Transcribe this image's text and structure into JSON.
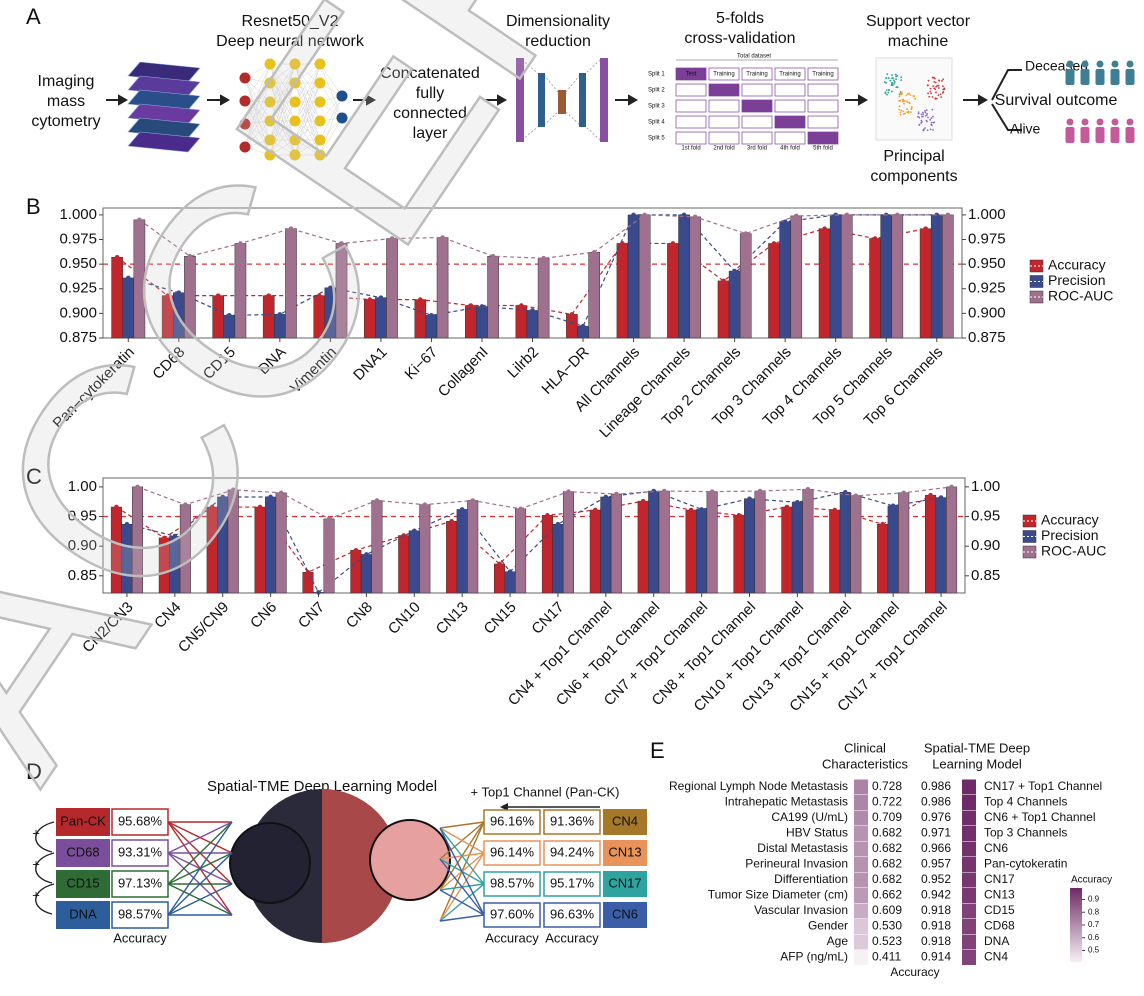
{
  "panel_a": {
    "label": "A",
    "imc": [
      "Imaging",
      "mass",
      "cytometry"
    ],
    "resnet": [
      "Resnet50_V2",
      "Deep neural network"
    ],
    "concat": [
      "Concatenated",
      "fully",
      "connected",
      "layer"
    ],
    "dimred": [
      "Dimensionality",
      "reduction"
    ],
    "cv": [
      "5-folds",
      "cross-validation"
    ],
    "cv_table": {
      "title": "Total dataset",
      "splits": [
        "Split 1",
        "Split 2",
        "Split 3",
        "Split 4",
        "Split 5"
      ],
      "test": "Test",
      "training": "Training",
      "folds": [
        "1st fold",
        "2nd fold",
        "3rd fold",
        "4th fold",
        "5th fold"
      ]
    },
    "svm": [
      "Support vector",
      "machine"
    ],
    "pc": [
      "Principal",
      "components"
    ],
    "deceased": "Deceased",
    "alive": "Alive",
    "outcome": "Survival outcome"
  },
  "chart_data": [
    {
      "type": "bar",
      "panel": "B",
      "categories": [
        "Pan−cytokeratin",
        "CD68",
        "CD15",
        "DNA",
        "Vimentin",
        "DNA1",
        "Ki−67",
        "CollagenI",
        "Lilrb2",
        "HLA−DR",
        "All Channels",
        "Lineage Channels",
        "Top 2 Channels",
        "Top 3 Channels",
        "Top 4 Channels",
        "Top 5 Channels",
        "Top 6 Channels"
      ],
      "series": [
        {
          "name": "Accuracy",
          "color": "#c0262c",
          "values": [
            0.957,
            0.918,
            0.918,
            0.918,
            0.918,
            0.914,
            0.914,
            0.908,
            0.908,
            0.899,
            0.971,
            0.971,
            0.933,
            0.971,
            0.986,
            0.976,
            0.986
          ]
        },
        {
          "name": "Precision",
          "color": "#3b4a8c",
          "values": [
            0.936,
            0.921,
            0.898,
            0.899,
            0.926,
            0.916,
            0.898,
            0.907,
            0.903,
            0.887,
            1,
            1,
            0.943,
            0.993,
            1,
            1,
            1
          ]
        },
        {
          "name": "ROC-AUC",
          "color": "#a0708f",
          "values": [
            0.995,
            0.958,
            0.971,
            0.986,
            0.971,
            0.976,
            0.977,
            0.958,
            0.956,
            0.962,
            1,
            0.998,
            0.981,
            0.999,
            1,
            1,
            1
          ]
        }
      ],
      "ylim": [
        0.875,
        1.007
      ],
      "yticks": [
        0.875,
        {
          "value": 0.9,
          "label": "0.900"
        },
        0.925,
        {
          "value": 0.95,
          "label": "0.950"
        },
        0.975,
        {
          "value": 1,
          "label": "1.000"
        }
      ],
      "reference_line": 0.95,
      "reference_color": "#e03030",
      "legend": "right"
    },
    {
      "type": "bar",
      "panel": "C",
      "categories": [
        "CN2/CN3",
        "CN4",
        "CN5/CN9",
        "CN6",
        "CN7",
        "CN8",
        "CN10",
        "CN13",
        "CN15",
        "CN17",
        "CN4 + Top1 Channel",
        "CN6 + Top1 Channel",
        "CN7 + Top1 Channel",
        "CN8 + Top1 Channel",
        "CN10 + Top1 Channel",
        "CN13 + Top1 Channel",
        "CN15 + Top1 Channel",
        "CN17 + Top1 Channel"
      ],
      "series": [
        {
          "name": "Accuracy",
          "color": "#c0262c",
          "values": [
            0.966,
            0.914,
            0.966,
            0.966,
            0.856,
            0.893,
            0.918,
            0.942,
            0.87,
            0.952,
            0.961,
            0.976,
            0.961,
            0.952,
            0.966,
            0.961,
            0.937,
            0.986
          ]
        },
        {
          "name": "Precision",
          "color": "#3b4a8c",
          "values": [
            0.937,
            0.917,
            0.983,
            0.983,
            0.822,
            0.886,
            0.926,
            0.962,
            0.857,
            0.937,
            0.983,
            0.993,
            0.962,
            0.98,
            0.974,
            0.991,
            0.968,
            0.982
          ]
        },
        {
          "name": "ROC-AUC",
          "color": "#a0708f",
          "values": [
            1,
            0.97,
            0.995,
            0.99,
            0.946,
            0.977,
            0.97,
            0.977,
            0.963,
            0.992,
            0.988,
            0.993,
            0.992,
            0.993,
            0.996,
            0.985,
            0.99,
            1
          ]
        }
      ],
      "ylim": [
        0.821,
        1.015
      ],
      "yticks": [
        0.85,
        {
          "value": 0.9,
          "label": "0.90"
        },
        0.95,
        {
          "value": 1,
          "label": "1.00"
        }
      ],
      "reference_line": 0.95,
      "reference_color": "#e03030",
      "legend": "right"
    }
  ],
  "panel_d": {
    "label": "D",
    "title": "Spatial-TME Deep Learning Model",
    "plus": "+",
    "left": [
      {
        "name": "Pan-CK",
        "color": "#b5282b",
        "accuracy": "95.68%"
      },
      {
        "name": "CD68",
        "color": "#7b4e9b",
        "accuracy": "93.31%"
      },
      {
        "name": "CD15",
        "color": "#2e6b35",
        "accuracy": "97.13%"
      },
      {
        "name": "DNA",
        "color": "#2d5d9a",
        "accuracy": "98.57%",
        "highlight": true
      }
    ],
    "left_label": "Accuracy",
    "top1": "+ Top1 Channel (Pan-CK)",
    "right": [
      {
        "name": "CN4",
        "color": "#a5782a",
        "accuracy_a": "96.16%",
        "accuracy_b": "91.36%"
      },
      {
        "name": "CN13",
        "color": "#e8935a",
        "accuracy_a": "96.14%",
        "accuracy_b": "94.24%"
      },
      {
        "name": "CN17",
        "color": "#2fa3a0",
        "accuracy_a": "98.57%",
        "accuracy_b": "95.17%",
        "highlight": true
      },
      {
        "name": "CN6",
        "color": "#3a5fa8",
        "accuracy_a": "97.60%",
        "accuracy_b": "96.63%"
      }
    ],
    "right_labels": [
      "Accuracy",
      "Accuracy"
    ],
    "highlight_color": "#d2302f"
  },
  "panel_e": {
    "label": "E",
    "clinical_header": [
      "Clinical",
      "Characteristics"
    ],
    "model_header": [
      "Spatial-TME Deep",
      "Learning Model"
    ],
    "rows": [
      "Regional Lymph Node Metastasis",
      "Intrahepatic Metastasis",
      "CA199 (U/mL)",
      "HBV Status",
      "Distal Metastasis",
      "Perineural Invasion",
      "Differentiation",
      "Tumor Size Diameter (cm)",
      "Vascular Invasion",
      "Gender",
      "Age",
      "AFP (ng/mL)"
    ],
    "clinical": {
      "values": [
        0.728,
        0.722,
        0.709,
        0.682,
        0.682,
        0.682,
        0.682,
        0.662,
        0.609,
        0.53,
        0.523,
        0.411
      ],
      "value_labels": [
        "0.728",
        "0.722",
        "0.709",
        "0.682",
        "0.682",
        "0.682",
        "0.682",
        "0.662",
        "0.609",
        "0.530",
        "0.523",
        "0.411"
      ]
    },
    "model_features": [
      "CN17 + Top1 Channel",
      "Top 4 Channels",
      "CN6 + Top1 Channel",
      "Top 3 Channels",
      "CN6",
      "Pan-cytokeratin",
      "CN17",
      "CN13",
      "CD15",
      "CD68",
      "DNA",
      "CN4"
    ],
    "model": {
      "values": [
        0.986,
        0.986,
        0.976,
        0.971,
        0.966,
        0.957,
        0.952,
        0.942,
        0.918,
        0.918,
        0.918,
        0.914
      ],
      "value_labels": [
        "0.986",
        "0.986",
        "0.976",
        "0.971",
        "0.966",
        "0.957",
        "0.952",
        "0.942",
        "0.918",
        "0.918",
        "0.918",
        "0.914"
      ]
    },
    "xlabel": "Accuracy",
    "colorbar": {
      "title": "Accuracy",
      "lim": [
        0.41,
        0.99
      ],
      "ticks": [
        0.5,
        0.6,
        0.7,
        0.8,
        0.9
      ],
      "colors": [
        "#f7f0f5",
        "#6e2a66"
      ]
    }
  },
  "watermark": "ACCEPTED"
}
